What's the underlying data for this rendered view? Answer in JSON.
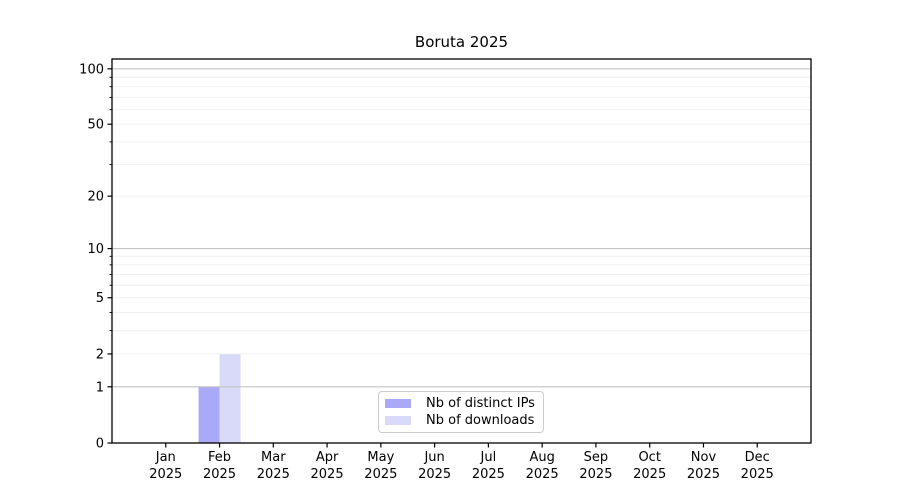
{
  "chart_data": {
    "type": "bar",
    "title": "Boruta 2025",
    "categories": [
      "Jan",
      "Feb",
      "Mar",
      "Apr",
      "May",
      "Jun",
      "Jul",
      "Aug",
      "Sep",
      "Oct",
      "Nov",
      "Dec"
    ],
    "x_year_label": "2025",
    "series": [
      {
        "name": "Nb of distinct IPs",
        "color": "#a9a9f7",
        "values": [
          0,
          1,
          0,
          0,
          0,
          0,
          0,
          0,
          0,
          0,
          0,
          0
        ]
      },
      {
        "name": "Nb of downloads",
        "color": "#d9d9f9",
        "values": [
          0,
          2,
          0,
          0,
          0,
          0,
          0,
          0,
          0,
          0,
          0,
          0
        ]
      }
    ],
    "y_scale": "log10(1+x)",
    "y_ticks": [
      0,
      1,
      2,
      5,
      10,
      20,
      50,
      100
    ],
    "ylim": [
      0,
      113
    ],
    "grid": {
      "major_values": [
        1,
        10,
        100
      ],
      "minor_values": [
        2,
        3,
        4,
        5,
        6,
        7,
        8,
        9,
        20,
        30,
        40,
        50,
        60,
        70,
        80,
        90
      ],
      "major_color": "#c4c4c4",
      "minor_color": "#f0f0f0"
    },
    "legend_position": "lower center",
    "axis_color": "#000000",
    "background_color": "#ffffff"
  }
}
